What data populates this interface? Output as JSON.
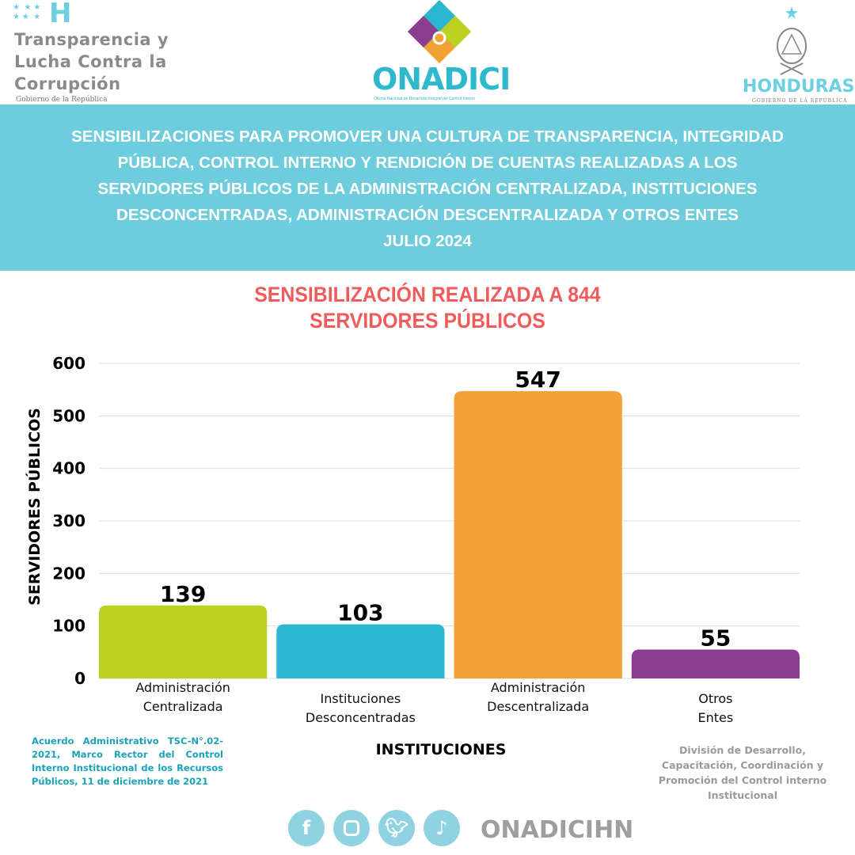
{
  "header": {
    "left_logo": {
      "mark": "H",
      "line1": "Transparencia y",
      "line2": "Lucha Contra la",
      "line3": "Corrupción",
      "sub": "Gobierno de la República"
    },
    "center_logo": {
      "name": "ONADICI",
      "sub": "Oficina Nacional de Desarrollo Integral del Control Interno"
    },
    "right_logo": {
      "name": "HONDURAS",
      "sub": "GOBIERNO DE LA REPÚBLICA"
    }
  },
  "banner": {
    "lines": [
      "SENSIBILIZACIONES PARA PROMOVER UNA CULTURA DE TRANSPARENCIA, INTEGRIDAD",
      "PÚBLICA, CONTROL INTERNO Y RENDICIÓN DE CUENTAS REALIZADAS A LOS",
      "SERVIDORES PÚBLICOS DE LA ADMINISTRACIÓN CENTRALIZADA,  INSTITUCIONES",
      "DESCONCENTRADAS, ADMINISTRACIÓN DESCENTRALIZADA Y OTROS ENTES",
      "JULIO 2024"
    ]
  },
  "chart_data": {
    "type": "bar",
    "title": [
      "SENSIBILIZACIÓN REALIZADA A 844",
      "SERVIDORES PÚBLICOS"
    ],
    "categories": [
      [
        "Administración",
        "Centralizada"
      ],
      [
        "Instituciones",
        "Desconcentradas"
      ],
      [
        "Administración",
        "Descentralizada"
      ],
      [
        "Otros",
        "Entes"
      ]
    ],
    "values": [
      139,
      103,
      547,
      55
    ],
    "colors": [
      "#bdd123",
      "#2bb7cf",
      "#f2a235",
      "#8a3f91"
    ],
    "xlabel": "INSTITUCIONES",
    "ylabel": "SERVIDORES PÚBLICOS",
    "ylim": [
      0,
      600
    ],
    "yticks": [
      0,
      100,
      200,
      300,
      400,
      500,
      600
    ],
    "grid": true,
    "data_labels": true
  },
  "footer": {
    "legal_note": "Acuerdo Administrativo TSC-N°.02-2021, Marco Rector del Control Interno Institucional de los Recursos Públicos, 11 de diciembre de 2021",
    "division_note": "División de Desarrollo, Capacitación, Coordinación y Promoción del Control interno Institucional",
    "social_icons": [
      "facebook-icon",
      "instagram-icon",
      "twitter-icon",
      "tiktok-icon"
    ],
    "handle": "ONADICIHN"
  }
}
